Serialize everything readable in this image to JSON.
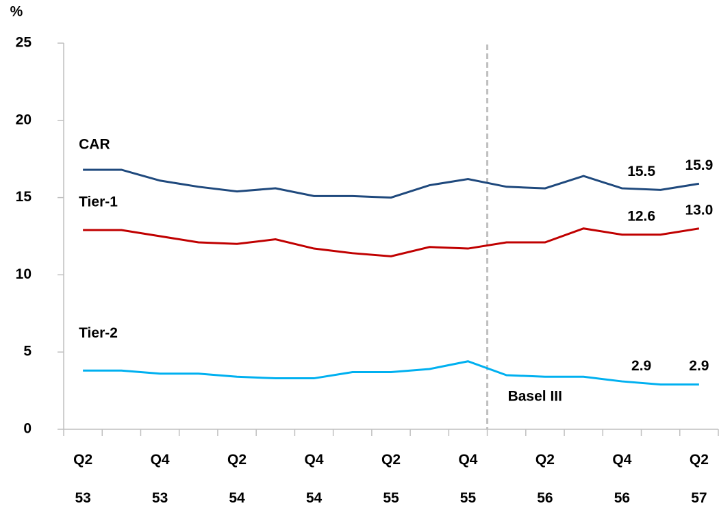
{
  "chart_data": {
    "type": "line",
    "y_unit_label": "%",
    "categories": [
      "Q2 53",
      null,
      "Q4 53",
      null,
      "Q2 54",
      null,
      "Q4 54",
      null,
      "Q2 55",
      null,
      "Q4 55",
      null,
      "Q2 56",
      null,
      "Q4 56",
      null,
      "Q2 57"
    ],
    "series": [
      {
        "name": "CAR",
        "color": "#1f497d",
        "values": [
          16.8,
          16.8,
          16.1,
          15.7,
          15.4,
          15.6,
          15.1,
          15.1,
          15.0,
          15.8,
          16.2,
          15.7,
          15.6,
          16.4,
          15.6,
          15.5,
          15.9
        ],
        "value_labels": [
          null,
          null,
          null,
          null,
          null,
          null,
          null,
          null,
          null,
          null,
          null,
          null,
          null,
          null,
          null,
          "15.5",
          "15.9"
        ]
      },
      {
        "name": "Tier-1",
        "color": "#c00000",
        "values": [
          12.9,
          12.9,
          12.5,
          12.1,
          12.0,
          12.3,
          11.7,
          11.4,
          11.2,
          11.8,
          11.7,
          12.1,
          12.1,
          13.0,
          12.6,
          12.6,
          13.0
        ],
        "value_labels": [
          null,
          null,
          null,
          null,
          null,
          null,
          null,
          null,
          null,
          null,
          null,
          null,
          null,
          null,
          null,
          "12.6",
          "13.0"
        ]
      },
      {
        "name": "Tier-2",
        "color": "#00b0f0",
        "label_color": "#4bacc6",
        "values": [
          3.8,
          3.8,
          3.6,
          3.6,
          3.4,
          3.3,
          3.3,
          3.7,
          3.7,
          3.9,
          4.4,
          3.5,
          3.4,
          3.4,
          3.1,
          2.9,
          2.9
        ],
        "value_labels": [
          null,
          null,
          null,
          null,
          null,
          null,
          null,
          null,
          null,
          null,
          null,
          null,
          null,
          null,
          null,
          "2.9",
          "2.9"
        ]
      }
    ],
    "divider": {
      "after_category": 10,
      "label": "Basel III"
    },
    "ylim": [
      0,
      25
    ],
    "yticks": [
      0,
      5,
      10,
      15,
      20,
      25
    ],
    "grid": false
  }
}
